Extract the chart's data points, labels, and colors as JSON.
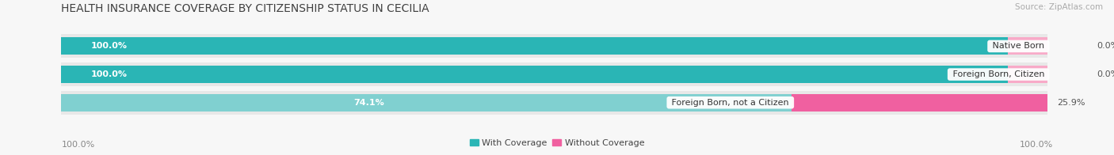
{
  "title": "HEALTH INSURANCE COVERAGE BY CITIZENSHIP STATUS IN CECILIA",
  "source": "Source: ZipAtlas.com",
  "categories": [
    "Native Born",
    "Foreign Born, Citizen",
    "Foreign Born, not a Citizen"
  ],
  "with_coverage": [
    100.0,
    100.0,
    74.1
  ],
  "without_coverage": [
    0.0,
    0.0,
    25.9
  ],
  "color_with_dark": "#2ab5b5",
  "color_with_light": "#80d0d0",
  "color_without_dark": "#f060a0",
  "color_without_light": "#f8aac8",
  "bar_bg_color": "#e8e8e8",
  "background": "#f7f7f7",
  "title_fontsize": 10,
  "source_fontsize": 7.5,
  "label_fontsize": 8,
  "legend_fontsize": 8,
  "axis_label_fontsize": 8,
  "left_axis_label": "100.0%",
  "right_axis_label": "100.0%"
}
